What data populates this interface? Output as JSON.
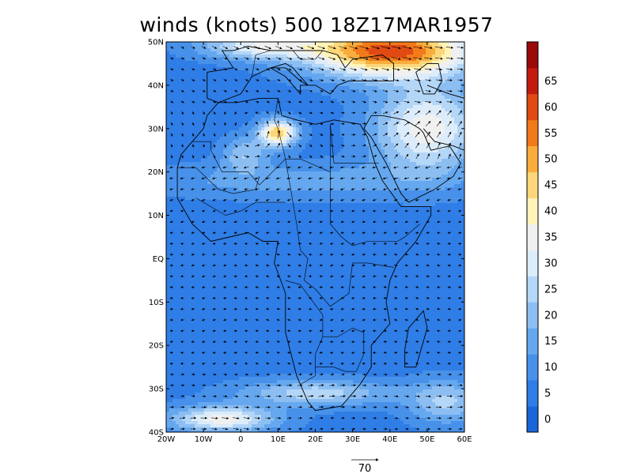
{
  "title": "winds (knots) 500 18Z17MAR1957",
  "map": {
    "lon_range": [
      -20,
      60
    ],
    "lat_range": [
      -40,
      50
    ],
    "lat_ticks": [
      {
        "value": 50,
        "label": "50N"
      },
      {
        "value": 40,
        "label": "40N"
      },
      {
        "value": 30,
        "label": "30N"
      },
      {
        "value": 20,
        "label": "20N"
      },
      {
        "value": 10,
        "label": "10N"
      },
      {
        "value": 0,
        "label": "EQ"
      },
      {
        "value": -10,
        "label": "10S"
      },
      {
        "value": -20,
        "label": "20S"
      },
      {
        "value": -30,
        "label": "30S"
      },
      {
        "value": -40,
        "label": "40S"
      }
    ],
    "lon_ticks": [
      {
        "value": -20,
        "label": "20W"
      },
      {
        "value": -10,
        "label": "10W"
      },
      {
        "value": 0,
        "label": "0"
      },
      {
        "value": 10,
        "label": "10E"
      },
      {
        "value": 20,
        "label": "20E"
      },
      {
        "value": 30,
        "label": "30E"
      },
      {
        "value": 40,
        "label": "40E"
      },
      {
        "value": 50,
        "label": "50E"
      },
      {
        "value": 60,
        "label": "60E"
      }
    ]
  },
  "colorbar": {
    "labels": [
      "0",
      "5",
      "10",
      "15",
      "20",
      "25",
      "30",
      "35",
      "40",
      "45",
      "50",
      "55",
      "60",
      "65"
    ],
    "colors": [
      "#1a66d9",
      "#2f7de6",
      "#4791ea",
      "#66a8ef",
      "#8cbef2",
      "#b4d6f7",
      "#dcecfa",
      "#f0f0f0",
      "#fff3b8",
      "#fcd67a",
      "#f9ad3c",
      "#f17a1a",
      "#e24a14",
      "#c21c0e",
      "#9a0a08"
    ]
  },
  "reference_vector": {
    "label": "70"
  }
}
